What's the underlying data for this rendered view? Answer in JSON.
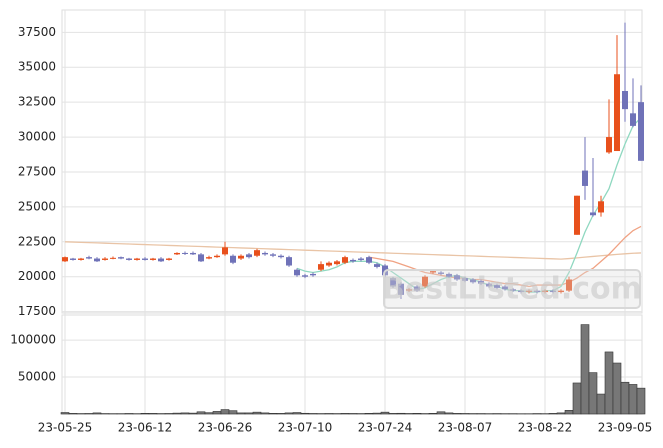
{
  "chart_data": {
    "type": "candlestick",
    "categories": [
      "23-05-25",
      null,
      null,
      null,
      null,
      null,
      null,
      null,
      null,
      null,
      "23-06-12",
      null,
      null,
      null,
      null,
      null,
      null,
      null,
      null,
      null,
      "23-06-26",
      null,
      null,
      null,
      null,
      null,
      null,
      null,
      null,
      null,
      "23-07-10",
      null,
      null,
      null,
      null,
      null,
      null,
      null,
      null,
      null,
      "23-07-24",
      null,
      null,
      null,
      null,
      null,
      null,
      null,
      null,
      null,
      "23-08-07",
      null,
      null,
      null,
      null,
      null,
      null,
      null,
      null,
      null,
      "23-08-22",
      null,
      null,
      null,
      null,
      null,
      null,
      null,
      null,
      null,
      "23-09-05",
      null,
      null
    ],
    "open": [
      21100,
      21300,
      21200,
      21400,
      21300,
      21200,
      21300,
      21400,
      21300,
      21200,
      21300,
      21200,
      21300,
      21200,
      21600,
      21700,
      21700,
      21600,
      21300,
      21400,
      21600,
      21500,
      21300,
      21600,
      21500,
      21700,
      21600,
      21500,
      21400,
      20500,
      20100,
      20200,
      20500,
      20800,
      20900,
      21000,
      21200,
      21300,
      21400,
      20900,
      20800,
      19900,
      19500,
      19000,
      19300,
      19300,
      20300,
      20300,
      20200,
      20100,
      19900,
      19800,
      19700,
      19500,
      19400,
      19300,
      19100,
      19000,
      18900,
      19000,
      18900,
      19000,
      18900,
      19000,
      23000,
      27600,
      24600,
      24600,
      28900,
      29000,
      33300,
      31700,
      32500
    ],
    "high": [
      21450,
      21350,
      21350,
      21500,
      21400,
      21400,
      21450,
      21450,
      21350,
      21350,
      21400,
      21350,
      21400,
      21350,
      21750,
      21800,
      21800,
      21700,
      21500,
      21600,
      22500,
      21600,
      21600,
      21700,
      22000,
      21800,
      21700,
      21600,
      21500,
      20600,
      20200,
      20300,
      21100,
      21100,
      21200,
      21500,
      21300,
      21400,
      21500,
      21000,
      20900,
      20000,
      19600,
      19200,
      19400,
      20100,
      20500,
      20400,
      20300,
      20200,
      20000,
      19900,
      19800,
      19600,
      19500,
      19400,
      19200,
      19100,
      19100,
      19100,
      19100,
      19100,
      19100,
      20000,
      25800,
      30000,
      28500,
      25800,
      32700,
      37300,
      38200,
      34200,
      33700
    ],
    "low": [
      21050,
      21150,
      21150,
      21250,
      21050,
      21150,
      21250,
      21250,
      21150,
      21150,
      21150,
      21150,
      21050,
      21150,
      21550,
      21550,
      21550,
      21050,
      21250,
      21350,
      21500,
      20900,
      21200,
      21300,
      21400,
      21500,
      21400,
      21300,
      20700,
      20000,
      19900,
      20000,
      20400,
      20700,
      20800,
      20900,
      21000,
      21100,
      20900,
      20600,
      20000,
      19200,
      18400,
      18900,
      18900,
      19200,
      20200,
      20100,
      19900,
      19700,
      19600,
      19500,
      19400,
      19200,
      19100,
      19000,
      18900,
      18800,
      18800,
      18800,
      18800,
      18800,
      18800,
      18900,
      23000,
      25500,
      24300,
      24300,
      28800,
      29000,
      31100,
      30700,
      28300
    ],
    "close": [
      21400,
      21200,
      21300,
      21300,
      21100,
      21300,
      21350,
      21300,
      21200,
      21300,
      21200,
      21300,
      21100,
      21300,
      21700,
      21650,
      21600,
      21100,
      21400,
      21500,
      22100,
      21000,
      21500,
      21400,
      21900,
      21600,
      21500,
      21400,
      20800,
      20100,
      20000,
      20100,
      20900,
      21000,
      21100,
      21400,
      21100,
      21200,
      21000,
      20700,
      20100,
      19300,
      18700,
      19100,
      19000,
      20000,
      20400,
      20200,
      20000,
      19800,
      19700,
      19600,
      19500,
      19300,
      19200,
      19100,
      19000,
      18900,
      19000,
      18900,
      19000,
      18900,
      19000,
      19800,
      25800,
      26500,
      24400,
      25400,
      30000,
      34500,
      32000,
      30800,
      28300
    ],
    "up_color": "#e8501c",
    "down_color": "#6f72b8",
    "series": [
      {
        "color": "#e9c4a6",
        "values": [
          22500,
          22480,
          22460,
          22440,
          22420,
          22400,
          22380,
          22360,
          22340,
          22320,
          22300,
          22280,
          22260,
          22240,
          22220,
          22200,
          22180,
          22160,
          22140,
          22120,
          22100,
          22080,
          22060,
          22040,
          22020,
          22000,
          21980,
          21960,
          21940,
          21920,
          21900,
          21880,
          21860,
          21840,
          21820,
          21800,
          21780,
          21760,
          21740,
          21720,
          21700,
          21680,
          21660,
          21640,
          21620,
          21600,
          21580,
          21560,
          21540,
          21520,
          21500,
          21480,
          21460,
          21440,
          21420,
          21400,
          21380,
          21360,
          21340,
          21320,
          21300,
          21280,
          21260,
          21300,
          21350,
          21400,
          21450,
          21500,
          21550,
          21600,
          21640,
          21680,
          21700
        ]
      },
      {
        "color": "#f0a283",
        "values": [
          null,
          null,
          null,
          null,
          null,
          null,
          null,
          null,
          null,
          null,
          null,
          null,
          null,
          null,
          null,
          null,
          null,
          null,
          null,
          null,
          null,
          null,
          null,
          null,
          null,
          null,
          null,
          null,
          null,
          null,
          null,
          null,
          null,
          null,
          null,
          null,
          null,
          null,
          21400,
          21300,
          21200,
          21100,
          20900,
          20700,
          20500,
          20300,
          20200,
          20100,
          20000,
          19900,
          19900,
          19800,
          19800,
          19700,
          19600,
          19500,
          19500,
          19400,
          19300,
          19400,
          19400,
          19400,
          19400,
          19600,
          19900,
          20300,
          20600,
          21100,
          21600,
          22200,
          22800,
          23300,
          23600
        ]
      },
      {
        "color": "#8fd8c0",
        "values": [
          null,
          null,
          null,
          null,
          null,
          null,
          null,
          null,
          null,
          null,
          null,
          null,
          null,
          null,
          null,
          null,
          null,
          null,
          null,
          null,
          null,
          null,
          null,
          null,
          null,
          null,
          null,
          null,
          null,
          20600,
          20400,
          20300,
          20400,
          20500,
          20700,
          21000,
          21100,
          21100,
          21100,
          21000,
          20700,
          20300,
          19900,
          19500,
          19100,
          19200,
          19500,
          19800,
          20000,
          20100,
          19900,
          19800,
          19600,
          19400,
          19300,
          19100,
          19000,
          19000,
          18900,
          18900,
          19000,
          19000,
          19300,
          20300,
          21700,
          23200,
          24400,
          25300,
          26300,
          28000,
          29500,
          30800,
          31400
        ]
      }
    ],
    "ylim": [
      17400,
      39100
    ],
    "yticks": [
      17500,
      20000,
      22500,
      25000,
      27500,
      30000,
      32500,
      35000,
      37500
    ],
    "volume": {
      "color": "#777777",
      "ylim": [
        0,
        134000
      ],
      "yticks": [
        50000,
        100000
      ],
      "values": [
        2000,
        800,
        600,
        700,
        1500,
        600,
        500,
        500,
        700,
        500,
        900,
        800,
        600,
        700,
        1200,
        1500,
        1200,
        3000,
        1800,
        3500,
        6000,
        4500,
        1500,
        1500,
        2500,
        1500,
        900,
        800,
        1500,
        2000,
        1000,
        700,
        600,
        700,
        600,
        800,
        700,
        600,
        900,
        1200,
        2500,
        800,
        1000,
        700,
        900,
        600,
        900,
        3000,
        1500,
        800,
        700,
        600,
        600,
        500,
        600,
        500,
        500,
        400,
        400,
        600,
        500,
        800,
        1500,
        5000,
        42000,
        121000,
        56000,
        27000,
        84000,
        69000,
        43000,
        40000,
        35000
      ]
    },
    "annotation": "BestListed.com"
  }
}
